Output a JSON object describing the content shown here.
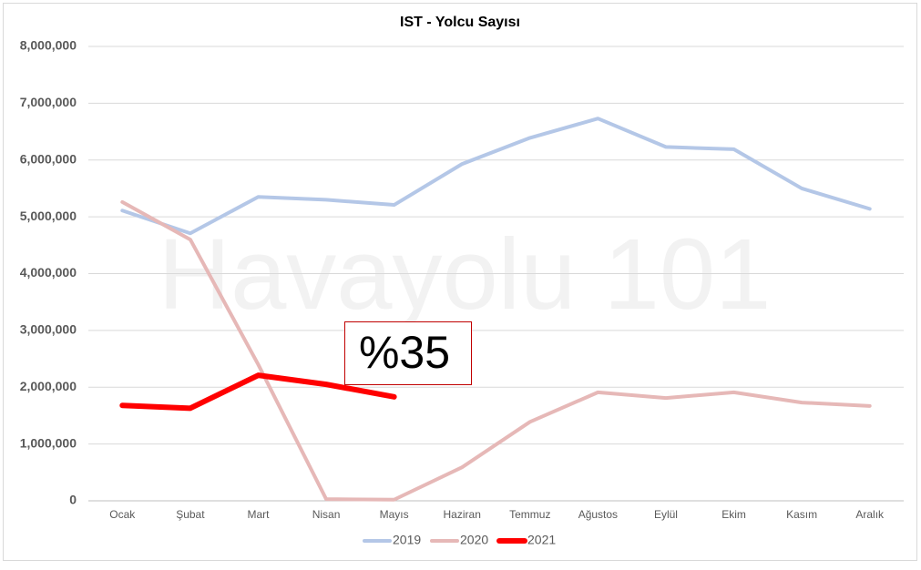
{
  "chart_data": {
    "type": "line",
    "title": "IST - Yolcu Sayısı",
    "categories": [
      "Ocak",
      "Şubat",
      "Mart",
      "Nisan",
      "Mayıs",
      "Haziran",
      "Temmuz",
      "Ağustos",
      "Eylül",
      "Ekim",
      "Kasım",
      "Aralık"
    ],
    "series": [
      {
        "name": "2019",
        "color": "#b4c7e7",
        "values": [
          5110000,
          4710000,
          5350000,
          5300000,
          5210000,
          5930000,
          6390000,
          6730000,
          6230000,
          6190000,
          5500000,
          5140000
        ]
      },
      {
        "name": "2020",
        "color": "#e6b8b7",
        "values": [
          5260000,
          4600000,
          2400000,
          30000,
          20000,
          590000,
          1390000,
          1910000,
          1810000,
          1910000,
          1730000,
          1670000
        ]
      },
      {
        "name": "2021",
        "color": "#ff0000",
        "values": [
          1680000,
          1630000,
          2210000,
          2050000,
          1830000,
          null,
          null,
          null,
          null,
          null,
          null,
          null
        ]
      }
    ],
    "ylim": [
      0,
      8000000
    ],
    "yticks": [
      0,
      {
        "value": 1000000,
        "label": "1,000,000"
      },
      {
        "value": 2000000,
        "label": "2,000,000"
      },
      {
        "value": 3000000,
        "label": "3,000,000"
      },
      {
        "value": 4000000,
        "label": "4,000,000"
      },
      {
        "value": 5000000,
        "label": "5,000,000"
      },
      {
        "value": 6000000,
        "label": "6,000,000"
      },
      {
        "value": 7000000,
        "label": "7,000,000"
      },
      {
        "value": 8000000,
        "label": "8,000,000"
      }
    ],
    "grid": true,
    "legend": "bottom",
    "annotations": [
      "%35",
      "Havayolu 101"
    ]
  }
}
